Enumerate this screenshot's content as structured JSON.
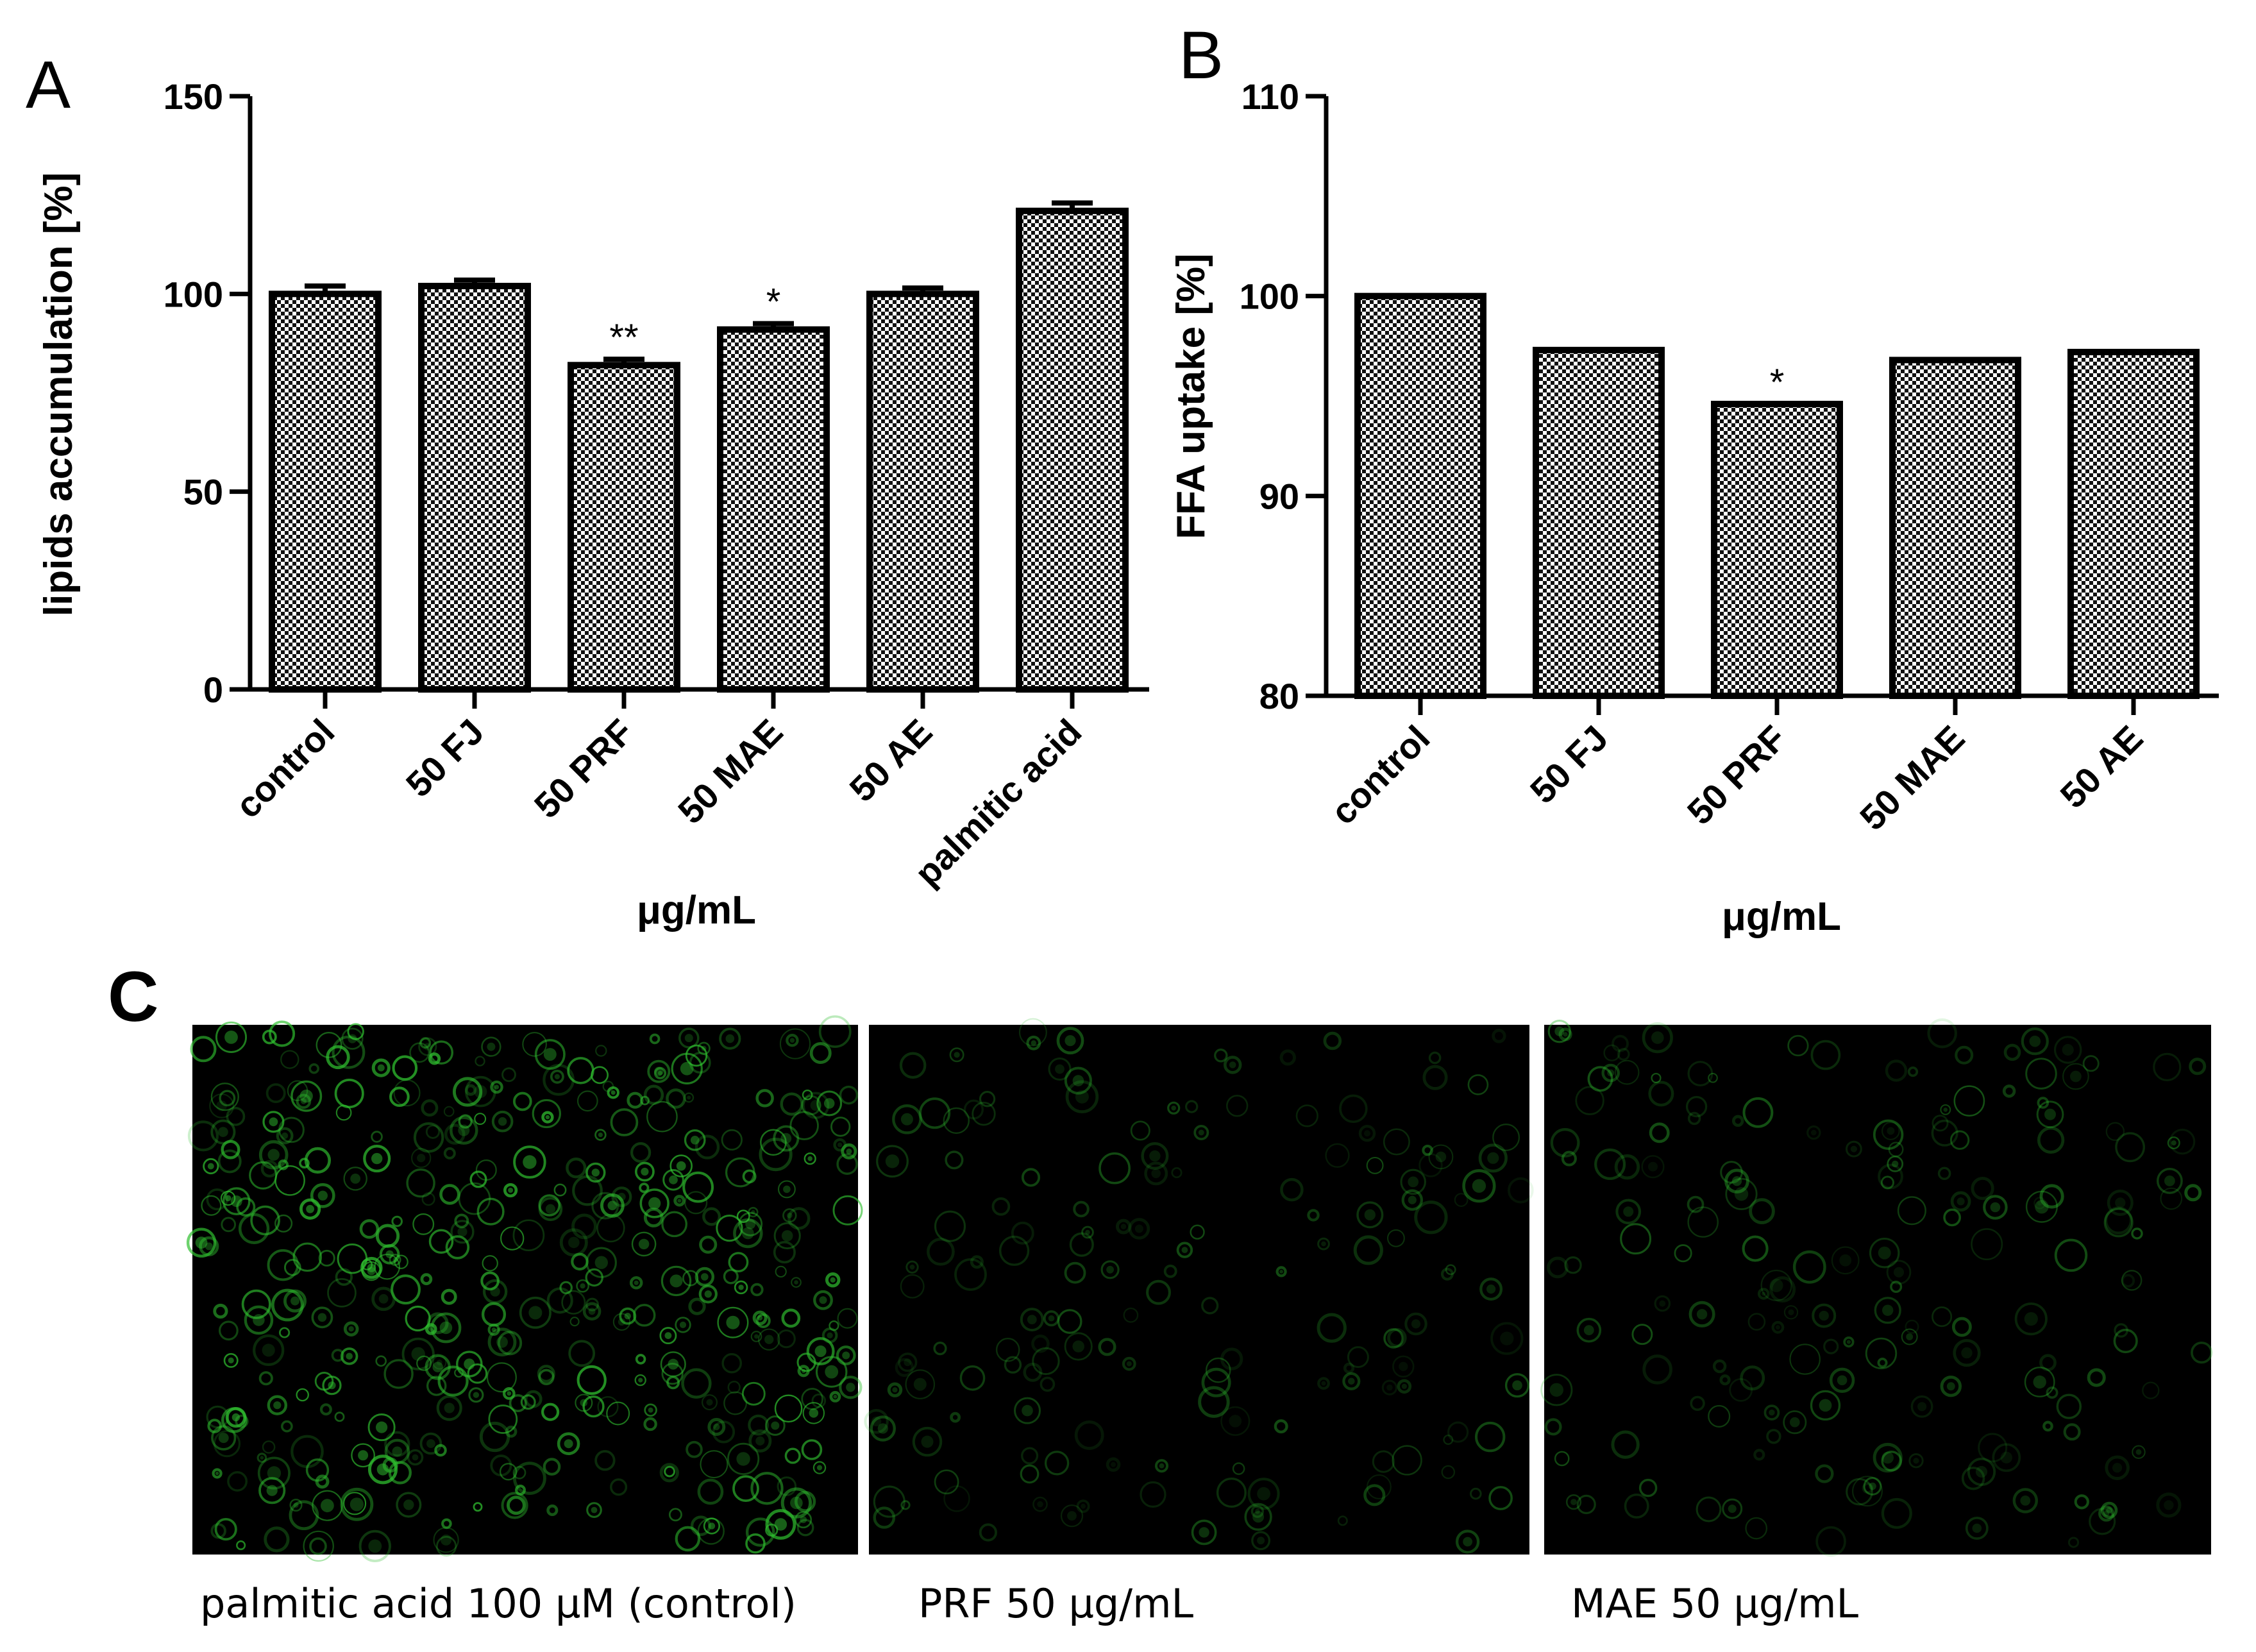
{
  "panels": {
    "A": {
      "letter": "A"
    },
    "B": {
      "letter": "B"
    },
    "C": {
      "letter": "C"
    }
  },
  "chart_data": [
    {
      "type": "bar",
      "panel": "A",
      "categories": [
        "control",
        "50 FJ",
        "50 PRF",
        "50 MAE",
        "50 AE",
        "palmitic acid"
      ],
      "values": [
        100,
        102,
        82,
        91,
        100,
        121
      ],
      "errors": [
        2,
        1.5,
        1.5,
        1.5,
        1.5,
        2
      ],
      "significance": [
        "",
        "",
        "**",
        "*",
        "",
        ""
      ],
      "xlabel": "μg/mL",
      "ylabel": "lipids accumulation [%]",
      "ylim": [
        0,
        150
      ],
      "yticks": [
        0,
        50,
        100,
        150
      ],
      "grid": false,
      "bar_pattern": "checkerboard"
    },
    {
      "type": "bar",
      "panel": "B",
      "categories": [
        "control",
        "50 FJ",
        "50 PRF",
        "50 MAE",
        "50 AE"
      ],
      "values": [
        100,
        97.3,
        94.6,
        96.8,
        97.2
      ],
      "significance": [
        "",
        "",
        "*",
        "",
        ""
      ],
      "xlabel": "μg/mL",
      "ylabel": "FFA uptake [%]",
      "ylim": [
        80,
        110
      ],
      "yticks": [
        80,
        90,
        100,
        110
      ],
      "grid": false,
      "bar_pattern": "checkerboard"
    }
  ],
  "micrographs": [
    {
      "caption": "palmitic acid 100 μM (control)",
      "intensity": "high"
    },
    {
      "caption": "PRF 50 μg/mL",
      "intensity": "low"
    },
    {
      "caption": "MAE 50 μg/mL",
      "intensity": "low"
    }
  ],
  "colors": {
    "fluorescence": "#2fbf2f",
    "micrograph_bg": "#000000"
  }
}
